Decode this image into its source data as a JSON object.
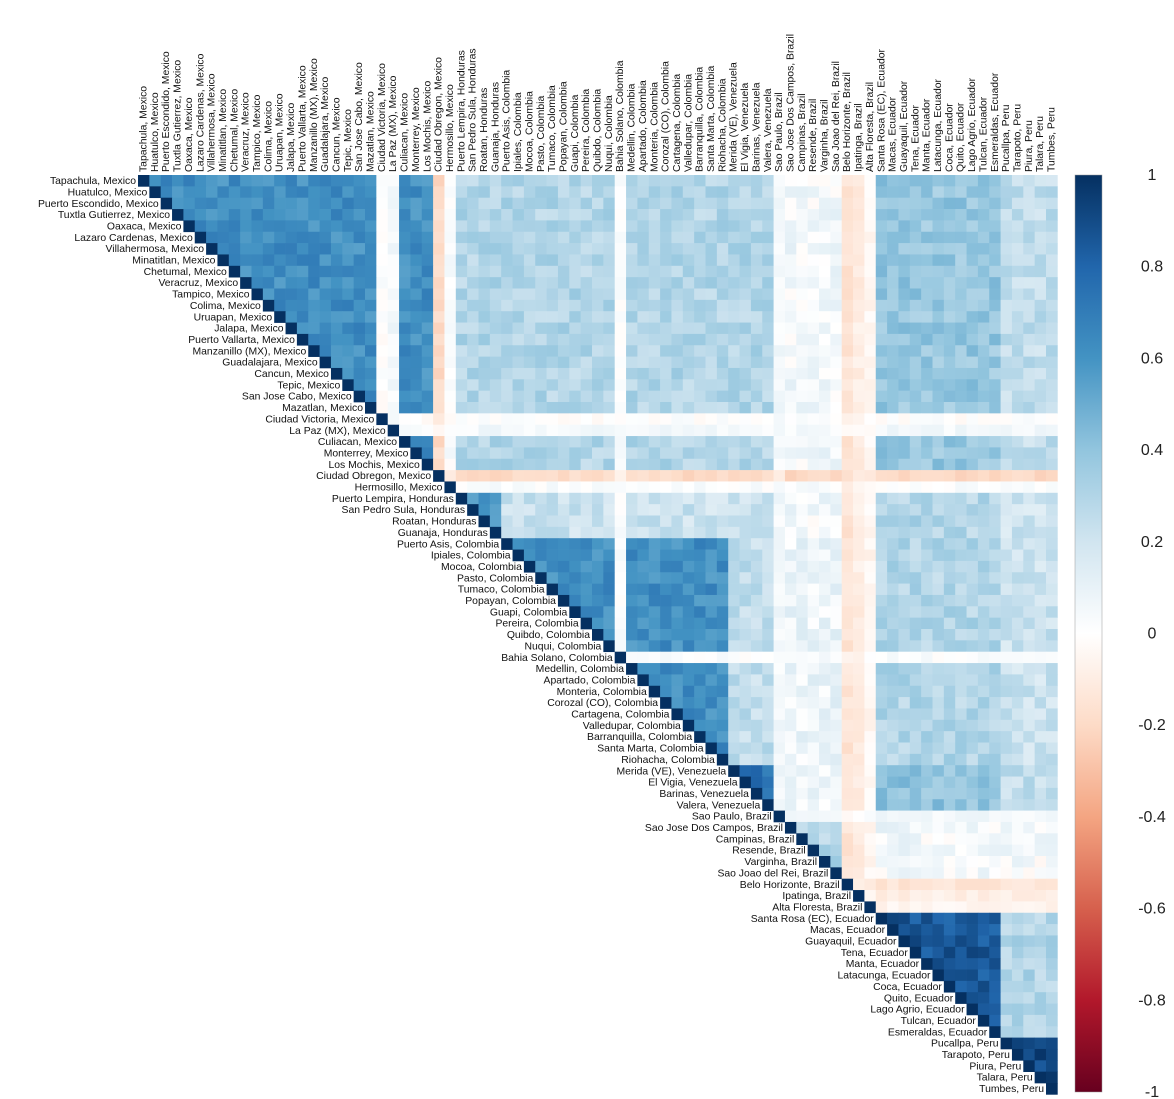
{
  "chart_data": {
    "type": "heatmap",
    "subtype": "correlation-matrix-upper-triangle",
    "labels": [
      "Tapachula, Mexico",
      "Huatulco, Mexico",
      "Puerto Escondido, Mexico",
      "Tuxtla Gutierrez, Mexico",
      "Oaxaca, Mexico",
      "Lazaro Cardenas, Mexico",
      "Villahermosa, Mexico",
      "Minatitlan, Mexico",
      "Chetumal, Mexico",
      "Veracruz, Mexico",
      "Tampico, Mexico",
      "Colima, Mexico",
      "Uruapan, Mexico",
      "Jalapa, Mexico",
      "Puerto Vallarta, Mexico",
      "Manzanillo (MX), Mexico",
      "Guadalajara, Mexico",
      "Cancun, Mexico",
      "Tepic, Mexico",
      "San Jose Cabo, Mexico",
      "Mazatlan, Mexico",
      "Ciudad Victoria, Mexico",
      "La Paz (MX), Mexico",
      "Culiacan, Mexico",
      "Monterrey, Mexico",
      "Los Mochis, Mexico",
      "Ciudad Obregon, Mexico",
      "Hermosillo, Mexico",
      "Puerto Lempira, Honduras",
      "San Pedro Sula, Honduras",
      "Roatan, Honduras",
      "Guanaja, Honduras",
      "Puerto Asis, Colombia",
      "Ipiales, Colombia",
      "Mocoa, Colombia",
      "Pasto, Colombia",
      "Tumaco, Colombia",
      "Popayan, Colombia",
      "Guapi, Colombia",
      "Pereira, Colombia",
      "Quibdo, Colombia",
      "Nuqui, Colombia",
      "Bahia Solano, Colombia",
      "Medellin, Colombia",
      "Apartado, Colombia",
      "Monteria, Colombia",
      "Corozal (CO), Colombia",
      "Cartagena, Colombia",
      "Valledupar, Colombia",
      "Barranquilla, Colombia",
      "Santa Marta, Colombia",
      "Riohacha, Colombia",
      "Merida (VE), Venezuela",
      "El Vigia, Venezuela",
      "Barinas, Venezuela",
      "Valera, Venezuela",
      "Sao Paulo, Brazil",
      "Sao Jose Dos Campos, Brazil",
      "Campinas, Brazil",
      "Resende, Brazil",
      "Varginha, Brazil",
      "Sao Joao del Rei, Brazil",
      "Belo Horizonte, Brazil",
      "Ipatinga, Brazil",
      "Alta Floresta, Brazil",
      "Santa Rosa (EC), Ecuador",
      "Macas, Ecuador",
      "Guayaquil, Ecuador",
      "Tena, Ecuador",
      "Manta, Ecuador",
      "Latacunga, Ecuador",
      "Coca, Ecuador",
      "Quito, Ecuador",
      "Lago Agrio, Ecuador",
      "Tulcan, Ecuador",
      "Esmeraldas, Ecuador",
      "Pucallpa, Peru",
      "Tarapoto, Peru",
      "Piura, Peru",
      "Talara, Peru",
      "Tumbes, Peru"
    ],
    "groups": [
      {
        "name": "Mexico",
        "start": 0,
        "end": 27
      },
      {
        "name": "Honduras",
        "start": 28,
        "end": 31
      },
      {
        "name": "Colombia",
        "start": 32,
        "end": 51
      },
      {
        "name": "Venezuela",
        "start": 52,
        "end": 55
      },
      {
        "name": "Brazil",
        "start": 56,
        "end": 64
      },
      {
        "name": "Ecuador",
        "start": 65,
        "end": 75
      },
      {
        "name": "Peru",
        "start": 76,
        "end": 80
      }
    ],
    "value_model": {
      "within_group_typical": {
        "Mexico": 0.62,
        "Honduras": 0.6,
        "Colombia": 0.62,
        "Venezuela": 0.75,
        "Brazil": 0.3,
        "Ecuador": 0.85,
        "Peru": 0.9
      },
      "between_group_typical": {
        "Mexico-Honduras": 0.3,
        "Mexico-Colombia": 0.3,
        "Mexico-Venezuela": 0.3,
        "Mexico-Brazil": 0.05,
        "Mexico-Ecuador": 0.38,
        "Mexico-Peru": 0.25,
        "Honduras-Colombia": 0.22,
        "Honduras-Venezuela": 0.22,
        "Honduras-Brazil": 0.05,
        "Honduras-Ecuador": 0.3,
        "Honduras-Peru": 0.2,
        "Colombia-Venezuela": 0.25,
        "Colombia-Brazil": 0.08,
        "Colombia-Ecuador": 0.3,
        "Colombia-Peru": 0.22,
        "Venezuela-Brazil": 0.08,
        "Venezuela-Ecuador": 0.4,
        "Venezuela-Peru": 0.25,
        "Brazil-Ecuador": 0.05,
        "Brazil-Peru": 0.03,
        "Ecuador-Peru": 0.3
      },
      "special_rows": {
        "Ciudad Victoria, Mexico": 0.0,
        "La Paz (MX), Mexico": 0.05,
        "Ciudad Obregon, Mexico": -0.2,
        "Hermosillo, Mexico": 0.02,
        "Bahia Solano, Colombia": 0.02,
        "Sao Paulo, Brazil": 0.05,
        "Alta Floresta, Brazil": -0.05,
        "Belo Horizonte, Brazil": -0.15,
        "Ipatinga, Brazil": -0.1
      },
      "diagonal": 1.0
    },
    "colorbar": {
      "min": -1,
      "max": 1,
      "ticks": [
        "1",
        "0.8",
        "0.6",
        "0.4",
        "0.2",
        "0",
        "-0.2",
        "-0.4",
        "-0.6",
        "-0.8",
        "-1"
      ],
      "colors": {
        "negative": "#67001f",
        "mid_negative": "#f4a582",
        "zero": "#ffffff",
        "mid_positive": "#92c5de",
        "positive": "#053061"
      }
    },
    "grid": false,
    "legend": "right colorbar"
  }
}
